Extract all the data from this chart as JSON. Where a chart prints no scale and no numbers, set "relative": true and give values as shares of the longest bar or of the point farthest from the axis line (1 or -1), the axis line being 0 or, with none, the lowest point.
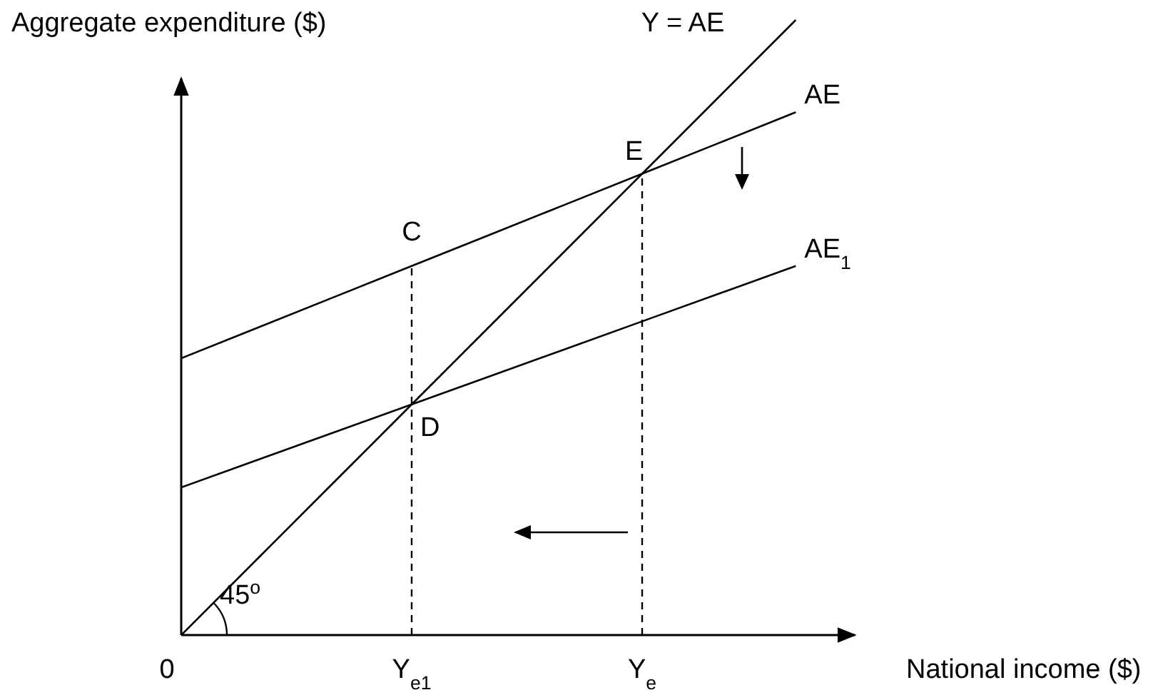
{
  "chart_data": {
    "type": "line",
    "relative": true,
    "xlabel": "National income ($)",
    "ylabel": "Aggregate expenditure ($)",
    "categories": [
      "0",
      null,
      null,
      "Y$_{e1}$",
      null,
      null,
      "Y$_{e}$",
      null,
      null
    ],
    "grid": false,
    "marker": "none",
    "color": "#000000",
    "line_style": "solid",
    "series": [
      {
        "name": "Y = AE",
        "values": [
          0,
          0.125,
          0.25,
          0.375,
          0.5,
          0.625,
          0.75,
          0.875,
          1
        ]
      },
      {
        "name": "AE",
        "values": [
          0.45,
          0.5,
          0.55,
          0.6,
          0.65,
          0.7,
          0.75,
          0.8,
          0.85
        ]
      },
      {
        "name": "AE$_{1}$",
        "values": [
          0.24,
          0.285,
          0.33,
          0.375,
          0.42,
          0.465,
          0.51,
          0.555,
          0.6
        ]
      }
    ],
    "ref_lines": [
      {
        "axis": "x",
        "value": "Y$_{e1}$",
        "line_style": "dashed"
      },
      {
        "axis": "x",
        "value": "Y$_{e}$",
        "line_style": "dashed"
      }
    ],
    "legend": false,
    "annotations": [
      "C",
      "D",
      "E",
      "45$^{o}$"
    ]
  }
}
